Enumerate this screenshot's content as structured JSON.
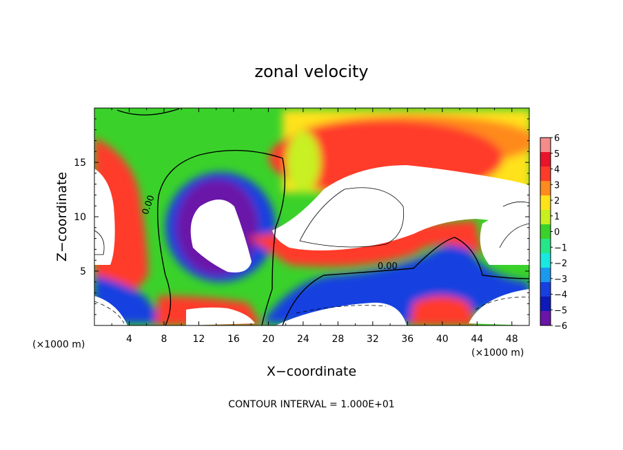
{
  "chart_data": {
    "type": "heatmap",
    "title": "zonal velocity",
    "xlabel": "X−coordinate",
    "ylabel": "Z−coordinate",
    "x_unit_left": "(×1000 m)",
    "x_unit_right": "(×1000 m)",
    "footer": "CONTOUR INTERVAL = 1.000E+01",
    "xlim": [
      0,
      50
    ],
    "ylim": [
      0,
      20
    ],
    "x_ticks": [
      4,
      8,
      12,
      16,
      20,
      24,
      28,
      32,
      36,
      40,
      44,
      48
    ],
    "x_tick_labels": [
      "4",
      "8",
      "12",
      "16",
      "20",
      "24",
      "28",
      "32",
      "36",
      "40",
      "44",
      "48"
    ],
    "y_ticks": [
      5,
      10,
      15
    ],
    "y_tick_labels": [
      "5",
      "10",
      "15"
    ],
    "colorbar": {
      "ticks": [
        6,
        5,
        4,
        3,
        2,
        1,
        0,
        -1,
        -2,
        -3,
        -4,
        -5,
        -6
      ],
      "labels": [
        "6",
        "5",
        "4",
        "3",
        "2",
        "1",
        "0",
        "−1",
        "−2",
        "−3",
        "−4",
        "−5",
        "−6"
      ],
      "colors": [
        "#f48c8c",
        "#e8142a",
        "#ff3b2a",
        "#ff8a1e",
        "#ffe21a",
        "#c8f020",
        "#3ad22a",
        "#26e68a",
        "#18e8e0",
        "#1a9aee",
        "#1840e0",
        "#0e1ab8",
        "#6a14a8"
      ]
    },
    "contour_labels": [
      {
        "text": "0.00",
        "x": 6.5,
        "y": 11.0
      },
      {
        "text": "0.00",
        "x": 33.7,
        "y": 5.2
      }
    ],
    "colors": {
      "purple": "#6a14a8",
      "navy": "#0e1ab8",
      "blue": "#1840e0",
      "sky": "#1a9aee",
      "cyan": "#18e8e0",
      "teal": "#26e68a",
      "green": "#3ad22a",
      "lime": "#c8f020",
      "yellow": "#ffe21a",
      "orange": "#ff8a1e",
      "red": "#ff3b2a",
      "crimson": "#e8142a",
      "pink": "#f48c8c"
    }
  }
}
